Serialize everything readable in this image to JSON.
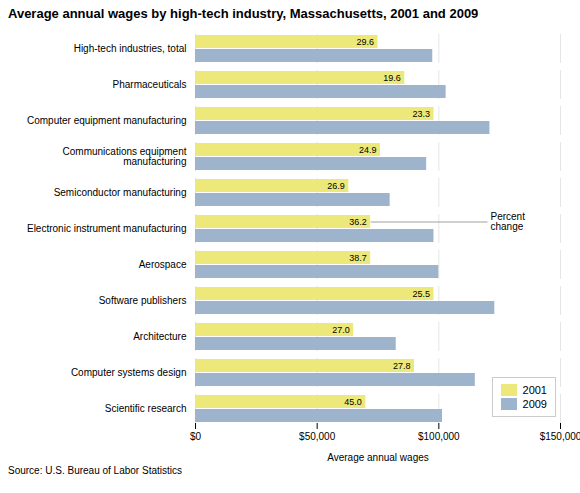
{
  "chart_data": {
    "type": "bar",
    "orientation": "horizontal",
    "title": "Average annual wages by high-tech industry, Massachusetts, 2001 and 2009",
    "categories": [
      "High-tech industries, total",
      "Pharmaceuticals",
      "Computer equipment manufacturing",
      "Communications equipment\nmanufacturing",
      "Semiconductor manufacturing",
      "Electronic instrument manufacturing",
      "Aerospace",
      "Software publishers",
      "Architecture",
      "Computer systems design",
      "Scientific research"
    ],
    "series": [
      {
        "name": "2001",
        "color": "#ede87a",
        "values": [
          75000,
          86000,
          98000,
          76000,
          63000,
          72000,
          72000,
          98000,
          65000,
          90000,
          70000
        ],
        "pct_change": [
          "29.6",
          "19.6",
          "23.3",
          "24.9",
          "26.9",
          "36.2",
          "38.7",
          "25.5",
          "27.0",
          "27.8",
          "45.0"
        ]
      },
      {
        "name": "2009",
        "color": "#9eb4cc",
        "values": [
          97500,
          103000,
          121000,
          95000,
          80000,
          98000,
          100000,
          123000,
          82500,
          115000,
          101500
        ]
      }
    ],
    "xlabel": "Average annual wages",
    "xlim": [
      0,
      150000
    ],
    "xticks": [
      {
        "value": 0,
        "label": "$0"
      },
      {
        "value": 50000,
        "label": "$50,000"
      },
      {
        "value": 100000,
        "label": "$100,000"
      },
      {
        "value": 150000,
        "label": "$150,000"
      }
    ],
    "grid": true,
    "legend": "lower right",
    "annotations": [
      {
        "text": "Percent\nchange",
        "category": "Electronic instrument manufacturing",
        "series": "2001"
      }
    ],
    "source": "Source: U.S. Bureau of Labor Statistics"
  }
}
